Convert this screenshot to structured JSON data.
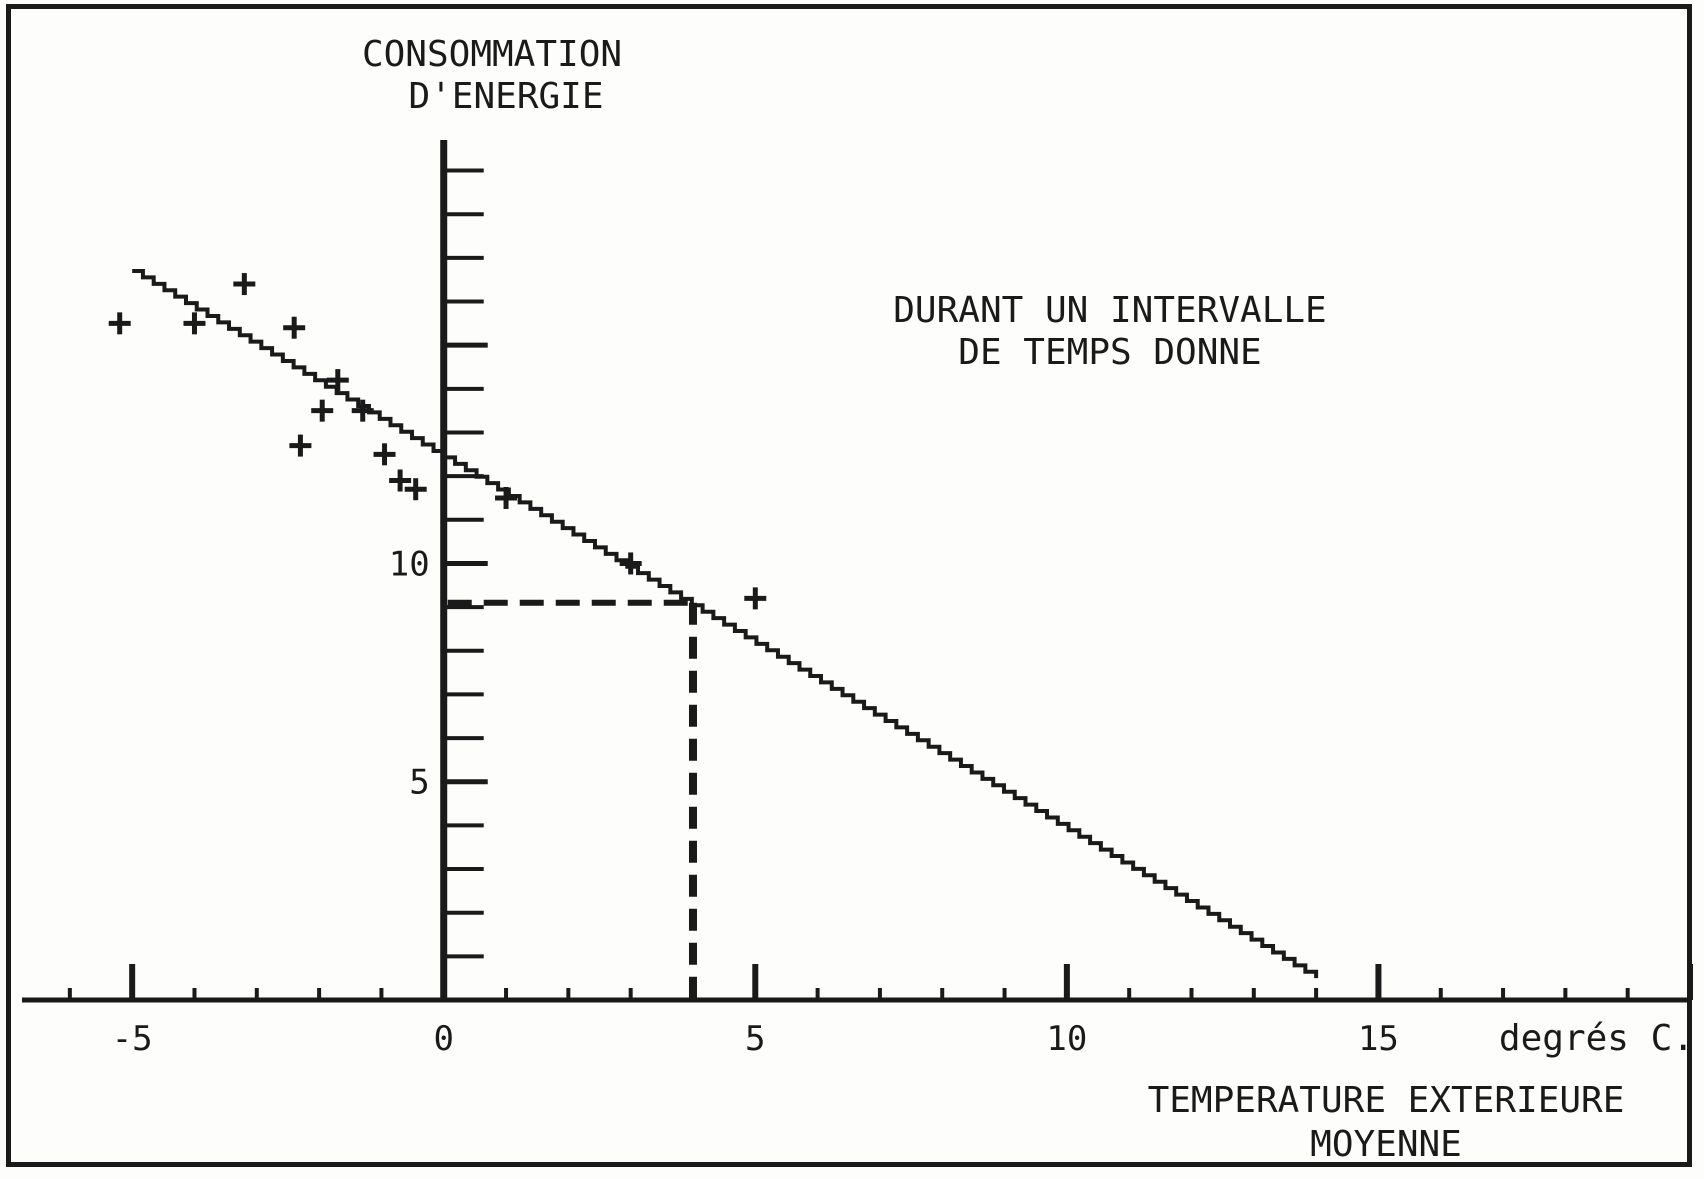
{
  "chart_data": {
    "type": "scatter",
    "title": "",
    "ylabel_lines": [
      "CONSOMMATION",
      "D'ENERGIE"
    ],
    "annotation_lines": [
      "DURANT UN INTERVALLE",
      "DE TEMPS DONNE"
    ],
    "x_unit": "degrés C.",
    "xlabel_lines": [
      "TEMPERATURE EXTERIEURE",
      "MOYENNE"
    ],
    "xlim": [
      -6.8,
      20
    ],
    "ylim": [
      0,
      19.7
    ],
    "x_major_ticks": [
      -5,
      0,
      5,
      10,
      15
    ],
    "x_tick_labels": [
      "-5",
      "0",
      "5",
      "10",
      "15"
    ],
    "x_minor_step": 1,
    "y_tick_labels": [
      {
        "value": 5,
        "label": "5"
      },
      {
        "value": 10,
        "label": "10"
      }
    ],
    "y_minor_step": 1,
    "y_minor_max": 19,
    "points": [
      {
        "x": -5.2,
        "y": 15.5
      },
      {
        "x": -4.0,
        "y": 15.5
      },
      {
        "x": -3.2,
        "y": 16.4
      },
      {
        "x": -2.4,
        "y": 15.4
      },
      {
        "x": -1.7,
        "y": 14.2
      },
      {
        "x": -1.95,
        "y": 13.5
      },
      {
        "x": -2.3,
        "y": 12.7
      },
      {
        "x": -1.3,
        "y": 13.5
      },
      {
        "x": -0.95,
        "y": 12.5
      },
      {
        "x": -0.7,
        "y": 11.9
      },
      {
        "x": -0.45,
        "y": 11.7
      },
      {
        "x": 1.0,
        "y": 11.5
      },
      {
        "x": 3.0,
        "y": 10.0
      },
      {
        "x": 5.0,
        "y": 9.2
      }
    ],
    "regression_line": {
      "x": [
        -5.0,
        14.0
      ],
      "y": [
        16.7,
        0.5
      ]
    },
    "reference": {
      "x": 4.0,
      "y": 9.1
    }
  }
}
